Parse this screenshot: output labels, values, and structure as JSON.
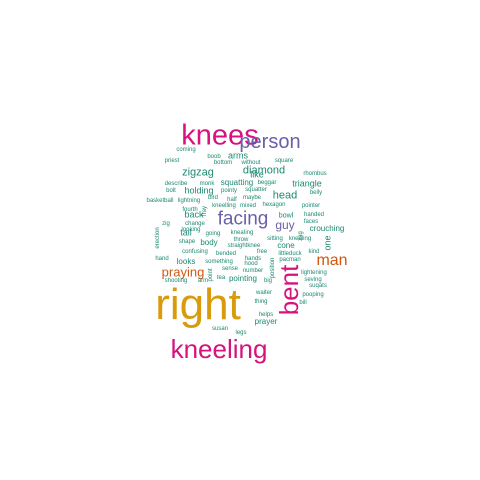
{
  "colors": {
    "magenta": "#d6127f",
    "gold": "#d99a0b",
    "purple": "#6a60a8",
    "orange": "#d2570f",
    "teal": "#1a8a72",
    "background": "#ffffff"
  },
  "words": [
    {
      "text": "right",
      "color": "gold"
    },
    {
      "text": "knees",
      "color": "magenta"
    },
    {
      "text": "kneeling",
      "color": "magenta"
    },
    {
      "text": "bent",
      "color": "magenta"
    },
    {
      "text": "person",
      "color": "purple"
    },
    {
      "text": "facing",
      "color": "purple"
    },
    {
      "text": "man",
      "color": "orange"
    },
    {
      "text": "praying",
      "color": "orange"
    },
    {
      "text": "guy",
      "color": "purple"
    },
    {
      "text": "head",
      "color": "teal"
    },
    {
      "text": "zigzag",
      "color": "teal"
    },
    {
      "text": "diamond",
      "color": "teal"
    },
    {
      "text": "arms",
      "color": "teal"
    },
    {
      "text": "like",
      "color": "teal"
    },
    {
      "text": "triangle",
      "color": "teal"
    },
    {
      "text": "holding",
      "color": "teal"
    },
    {
      "text": "squatting",
      "color": "teal"
    },
    {
      "text": "back",
      "color": "teal"
    },
    {
      "text": "one",
      "color": "teal"
    },
    {
      "text": "crouching",
      "color": "teal"
    },
    {
      "text": "tail",
      "color": "teal"
    },
    {
      "text": "body",
      "color": "teal"
    },
    {
      "text": "looks",
      "color": "teal"
    },
    {
      "text": "pointing",
      "color": "teal"
    },
    {
      "text": "prayer",
      "color": "teal"
    },
    {
      "text": "bowl",
      "color": "teal"
    },
    {
      "text": "cone",
      "color": "teal"
    },
    {
      "text": "coming",
      "color": "teal"
    },
    {
      "text": "priest",
      "color": "teal"
    },
    {
      "text": "boob",
      "color": "teal"
    },
    {
      "text": "bottom",
      "color": "teal"
    },
    {
      "text": "without",
      "color": "teal"
    },
    {
      "text": "square",
      "color": "teal"
    },
    {
      "text": "rhombus",
      "color": "teal"
    },
    {
      "text": "describe",
      "color": "teal"
    },
    {
      "text": "monk",
      "color": "teal"
    },
    {
      "text": "beggar",
      "color": "teal"
    },
    {
      "text": "squatter",
      "color": "teal"
    },
    {
      "text": "belly",
      "color": "teal"
    },
    {
      "text": "bolt",
      "color": "teal"
    },
    {
      "text": "pointy",
      "color": "teal"
    },
    {
      "text": "basketball",
      "color": "teal"
    },
    {
      "text": "lightning",
      "color": "teal"
    },
    {
      "text": "bird",
      "color": "teal"
    },
    {
      "text": "half",
      "color": "teal"
    },
    {
      "text": "maybe",
      "color": "teal"
    },
    {
      "text": "pointer",
      "color": "teal"
    },
    {
      "text": "fourth",
      "color": "teal"
    },
    {
      "text": "kneelling",
      "color": "teal"
    },
    {
      "text": "mixed",
      "color": "teal"
    },
    {
      "text": "hexagon",
      "color": "teal"
    },
    {
      "text": "handed",
      "color": "teal"
    },
    {
      "text": "zig",
      "color": "teal"
    },
    {
      "text": "change",
      "color": "teal"
    },
    {
      "text": "faces",
      "color": "teal"
    },
    {
      "text": "kneaIing",
      "color": "teal"
    },
    {
      "text": "looking",
      "color": "teal"
    },
    {
      "text": "going",
      "color": "teal"
    },
    {
      "text": "erection",
      "color": "teal"
    },
    {
      "text": "shape",
      "color": "teal"
    },
    {
      "text": "throw",
      "color": "teal"
    },
    {
      "text": "sitting",
      "color": "teal"
    },
    {
      "text": "kneeling",
      "color": "teal"
    },
    {
      "text": "straightknee",
      "color": "teal"
    },
    {
      "text": "confusing",
      "color": "teal"
    },
    {
      "text": "free",
      "color": "teal"
    },
    {
      "text": "kind",
      "color": "teal"
    },
    {
      "text": "bended",
      "color": "teal"
    },
    {
      "text": "littleduck",
      "color": "teal"
    },
    {
      "text": "hand",
      "color": "teal"
    },
    {
      "text": "something",
      "color": "teal"
    },
    {
      "text": "hands",
      "color": "teal"
    },
    {
      "text": "pacman",
      "color": "teal"
    },
    {
      "text": "hood",
      "color": "teal"
    },
    {
      "text": "sense",
      "color": "teal"
    },
    {
      "text": "number",
      "color": "teal"
    },
    {
      "text": "lightening",
      "color": "teal"
    },
    {
      "text": "seving",
      "color": "teal"
    },
    {
      "text": "suqats",
      "color": "teal"
    },
    {
      "text": "shooting",
      "color": "teal"
    },
    {
      "text": "arm",
      "color": "teal"
    },
    {
      "text": "tea",
      "color": "teal"
    },
    {
      "text": "big",
      "color": "teal"
    },
    {
      "text": "waiter",
      "color": "teal"
    },
    {
      "text": "pooping",
      "color": "teal"
    },
    {
      "text": "thing",
      "color": "teal"
    },
    {
      "text": "bill",
      "color": "teal"
    },
    {
      "text": "helps",
      "color": "teal"
    },
    {
      "text": "susan",
      "color": "teal"
    },
    {
      "text": "legs",
      "color": "teal"
    },
    {
      "text": "fray",
      "color": "teal"
    },
    {
      "text": "zag",
      "color": "teal"
    },
    {
      "text": "position",
      "color": "teal"
    },
    {
      "text": "point",
      "color": "teal"
    }
  ]
}
